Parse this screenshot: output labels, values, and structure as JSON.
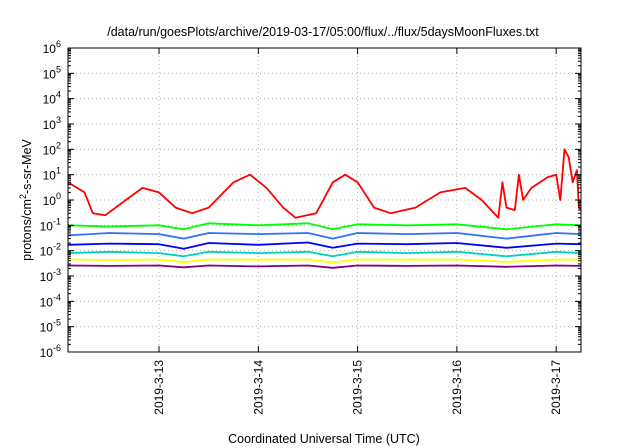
{
  "chart_data": {
    "type": "line",
    "title": "/data/run/goesPlots/archive/2019-03-17/05:00/flux/../flux/5daysMoonFluxes.txt",
    "xlabel": "Coordinated Universal Time (UTC)",
    "ylabel": {
      "base": "protons/cm",
      "sup": "2",
      "rest": "-s-sr-MeV"
    },
    "y_scale": "log",
    "ylim": [
      "1e-6",
      "1e6"
    ],
    "xlim": [
      "2019-03-12 02:00",
      "2019-03-17 06:00"
    ],
    "grid": true,
    "legend": "none",
    "y_ticks": [
      {
        "value": "1e-6",
        "base": "10",
        "exp": "-6"
      },
      {
        "value": "1e-5",
        "base": "10",
        "exp": "-5"
      },
      {
        "value": "1e-4",
        "base": "10",
        "exp": "-4"
      },
      {
        "value": "1e-3",
        "base": "10",
        "exp": "-3"
      },
      {
        "value": "1e-2",
        "base": "10",
        "exp": "-2"
      },
      {
        "value": "1e-1",
        "base": "10",
        "exp": "-1"
      },
      {
        "value": "1e0",
        "base": "10",
        "exp": "0"
      },
      {
        "value": "1e1",
        "base": "10",
        "exp": "1"
      },
      {
        "value": "1e2",
        "base": "10",
        "exp": "2"
      },
      {
        "value": "1e3",
        "base": "10",
        "exp": "3"
      },
      {
        "value": "1e4",
        "base": "10",
        "exp": "4"
      },
      {
        "value": "1e5",
        "base": "10",
        "exp": "5"
      },
      {
        "value": "1e6",
        "base": "10",
        "exp": "6"
      }
    ],
    "x_ticks": [
      {
        "date": "2019-03-13 00:00",
        "label": "2019-3-13"
      },
      {
        "date": "2019-03-14 00:00",
        "label": "2019-3-14"
      },
      {
        "date": "2019-03-15 00:00",
        "label": "2019-3-15"
      },
      {
        "date": "2019-03-16 00:00",
        "label": "2019-3-16"
      },
      {
        "date": "2019-03-17 00:00",
        "label": "2019-3-17"
      }
    ],
    "series": [
      {
        "color": "#800080",
        "points": [
          [
            "2019-03-12 02:00",
            0.0026
          ],
          [
            "2019-03-12 12:00",
            0.0025
          ],
          [
            "2019-03-13 00:00",
            0.0026
          ],
          [
            "2019-03-13 06:00",
            0.0022
          ],
          [
            "2019-03-13 12:00",
            0.0026
          ],
          [
            "2019-03-14 00:00",
            0.0024
          ],
          [
            "2019-03-14 12:00",
            0.0026
          ],
          [
            "2019-03-14 18:00",
            0.0021
          ],
          [
            "2019-03-15 00:00",
            0.0026
          ],
          [
            "2019-03-15 12:00",
            0.0025
          ],
          [
            "2019-03-16 00:00",
            0.0026
          ],
          [
            "2019-03-16 12:00",
            0.0023
          ],
          [
            "2019-03-17 00:00",
            0.0026
          ],
          [
            "2019-03-17 06:00",
            0.0025
          ]
        ]
      },
      {
        "color": "#ffff00",
        "points": [
          [
            "2019-03-12 02:00",
            0.0045
          ],
          [
            "2019-03-12 12:00",
            0.0043
          ],
          [
            "2019-03-13 00:00",
            0.0045
          ],
          [
            "2019-03-13 06:00",
            0.0035
          ],
          [
            "2019-03-13 12:00",
            0.0045
          ],
          [
            "2019-03-14 00:00",
            0.0044
          ],
          [
            "2019-03-14 12:00",
            0.0045
          ],
          [
            "2019-03-14 18:00",
            0.0034
          ],
          [
            "2019-03-15 00:00",
            0.0045
          ],
          [
            "2019-03-15 12:00",
            0.0044
          ],
          [
            "2019-03-16 00:00",
            0.0045
          ],
          [
            "2019-03-16 12:00",
            0.0036
          ],
          [
            "2019-03-17 00:00",
            0.0045
          ],
          [
            "2019-03-17 06:00",
            0.0044
          ]
        ]
      },
      {
        "color": "#00d0c0",
        "points": [
          [
            "2019-03-12 02:00",
            0.008
          ],
          [
            "2019-03-12 12:00",
            0.009
          ],
          [
            "2019-03-13 00:00",
            0.008
          ],
          [
            "2019-03-13 06:00",
            0.006
          ],
          [
            "2019-03-13 12:00",
            0.009
          ],
          [
            "2019-03-14 00:00",
            0.008
          ],
          [
            "2019-03-14 12:00",
            0.009
          ],
          [
            "2019-03-14 18:00",
            0.006
          ],
          [
            "2019-03-15 00:00",
            0.009
          ],
          [
            "2019-03-15 12:00",
            0.008
          ],
          [
            "2019-03-16 00:00",
            0.009
          ],
          [
            "2019-03-16 12:00",
            0.006
          ],
          [
            "2019-03-17 00:00",
            0.009
          ],
          [
            "2019-03-17 06:00",
            0.008
          ]
        ]
      },
      {
        "color": "#0000ff",
        "points": [
          [
            "2019-03-12 02:00",
            0.017
          ],
          [
            "2019-03-12 12:00",
            0.019
          ],
          [
            "2019-03-13 00:00",
            0.018
          ],
          [
            "2019-03-13 06:00",
            0.012
          ],
          [
            "2019-03-13 12:00",
            0.02
          ],
          [
            "2019-03-14 00:00",
            0.017
          ],
          [
            "2019-03-14 12:00",
            0.021
          ],
          [
            "2019-03-14 18:00",
            0.013
          ],
          [
            "2019-03-15 00:00",
            0.019
          ],
          [
            "2019-03-15 12:00",
            0.018
          ],
          [
            "2019-03-16 00:00",
            0.02
          ],
          [
            "2019-03-16 12:00",
            0.013
          ],
          [
            "2019-03-17 00:00",
            0.019
          ],
          [
            "2019-03-17 06:00",
            0.018
          ]
        ]
      },
      {
        "color": "#3070ff",
        "points": [
          [
            "2019-03-12 02:00",
            0.04
          ],
          [
            "2019-03-12 12:00",
            0.05
          ],
          [
            "2019-03-13 00:00",
            0.045
          ],
          [
            "2019-03-13 06:00",
            0.03
          ],
          [
            "2019-03-13 12:00",
            0.05
          ],
          [
            "2019-03-14 00:00",
            0.045
          ],
          [
            "2019-03-14 12:00",
            0.05
          ],
          [
            "2019-03-14 18:00",
            0.03
          ],
          [
            "2019-03-15 00:00",
            0.05
          ],
          [
            "2019-03-15 12:00",
            0.045
          ],
          [
            "2019-03-16 00:00",
            0.05
          ],
          [
            "2019-03-16 12:00",
            0.03
          ],
          [
            "2019-03-17 00:00",
            0.05
          ],
          [
            "2019-03-17 06:00",
            0.045
          ]
        ]
      },
      {
        "color": "#00ff00",
        "points": [
          [
            "2019-03-12 02:00",
            0.1
          ],
          [
            "2019-03-12 12:00",
            0.09
          ],
          [
            "2019-03-13 00:00",
            0.1
          ],
          [
            "2019-03-13 06:00",
            0.07
          ],
          [
            "2019-03-13 12:00",
            0.12
          ],
          [
            "2019-03-14 00:00",
            0.1
          ],
          [
            "2019-03-14 12:00",
            0.12
          ],
          [
            "2019-03-14 18:00",
            0.07
          ],
          [
            "2019-03-15 00:00",
            0.11
          ],
          [
            "2019-03-15 12:00",
            0.1
          ],
          [
            "2019-03-16 00:00",
            0.11
          ],
          [
            "2019-03-16 12:00",
            0.07
          ],
          [
            "2019-03-17 00:00",
            0.11
          ],
          [
            "2019-03-17 06:00",
            0.1
          ]
        ]
      },
      {
        "color": "#ff0000",
        "points": [
          [
            "2019-03-12 02:00",
            5
          ],
          [
            "2019-03-12 06:00",
            2
          ],
          [
            "2019-03-12 08:00",
            0.3
          ],
          [
            "2019-03-12 11:00",
            0.25
          ],
          [
            "2019-03-12 16:00",
            1
          ],
          [
            "2019-03-12 20:00",
            3
          ],
          [
            "2019-03-13 00:00",
            2
          ],
          [
            "2019-03-13 04:00",
            0.5
          ],
          [
            "2019-03-13 08:00",
            0.3
          ],
          [
            "2019-03-13 12:00",
            0.5
          ],
          [
            "2019-03-13 18:00",
            5
          ],
          [
            "2019-03-13 22:00",
            10
          ],
          [
            "2019-03-14 02:00",
            3
          ],
          [
            "2019-03-14 06:00",
            0.5
          ],
          [
            "2019-03-14 09:00",
            0.2
          ],
          [
            "2019-03-14 14:00",
            0.3
          ],
          [
            "2019-03-14 18:00",
            5
          ],
          [
            "2019-03-14 21:00",
            10
          ],
          [
            "2019-03-15 00:00",
            5
          ],
          [
            "2019-03-15 04:00",
            0.5
          ],
          [
            "2019-03-15 08:00",
            0.3
          ],
          [
            "2019-03-15 14:00",
            0.5
          ],
          [
            "2019-03-15 20:00",
            2
          ],
          [
            "2019-03-16 02:00",
            3
          ],
          [
            "2019-03-16 06:00",
            1
          ],
          [
            "2019-03-16 09:00",
            0.3
          ],
          [
            "2019-03-16 10:00",
            0.2
          ],
          [
            "2019-03-16 11:00",
            5
          ],
          [
            "2019-03-16 12:00",
            0.5
          ],
          [
            "2019-03-16 14:00",
            0.4
          ],
          [
            "2019-03-16 15:00",
            10
          ],
          [
            "2019-03-16 16:00",
            1
          ],
          [
            "2019-03-16 18:00",
            3
          ],
          [
            "2019-03-16 22:00",
            8
          ],
          [
            "2019-03-17 00:00",
            10
          ],
          [
            "2019-03-17 01:00",
            1
          ],
          [
            "2019-03-17 02:00",
            100
          ],
          [
            "2019-03-17 03:00",
            50
          ],
          [
            "2019-03-17 04:00",
            5
          ],
          [
            "2019-03-17 05:00",
            15
          ],
          [
            "2019-03-17 05:30",
            0.5
          ],
          [
            "2019-03-17 06:00",
            0.4
          ]
        ]
      }
    ]
  }
}
